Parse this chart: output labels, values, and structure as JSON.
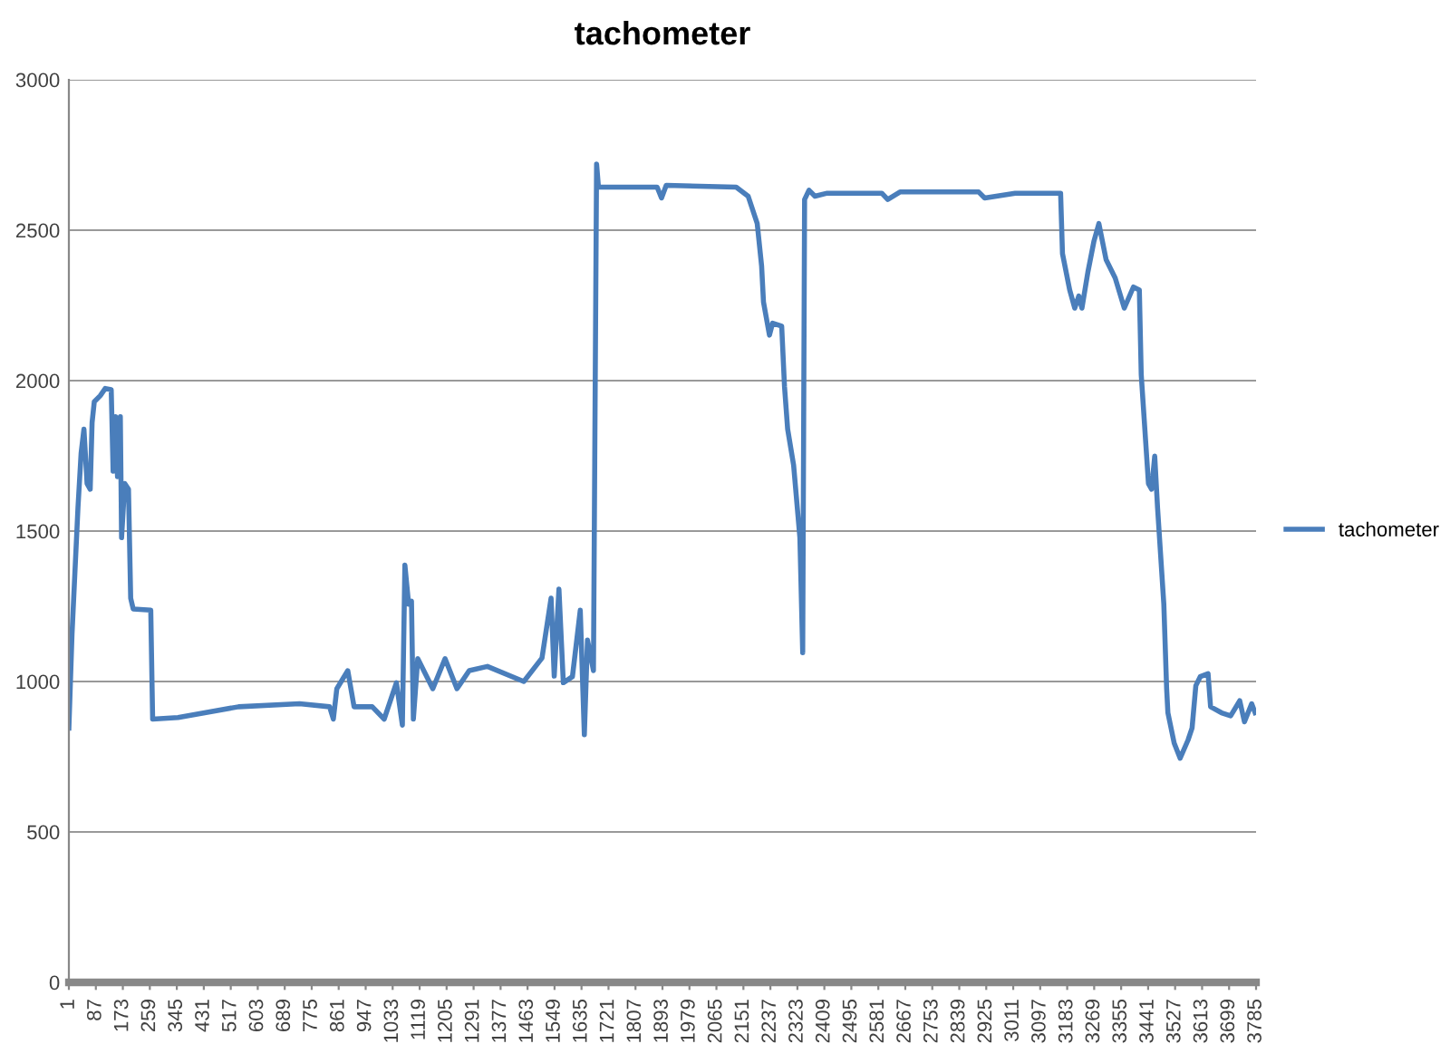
{
  "chart_data": {
    "type": "line",
    "title": "tachometer",
    "x": [
      1,
      11,
      20,
      30,
      40,
      49,
      59,
      69,
      75,
      82,
      101,
      117,
      136,
      142,
      150,
      156,
      165,
      169,
      179,
      191,
      198,
      206,
      262,
      268,
      349,
      542,
      736,
      832,
      844,
      855,
      890,
      910,
      968,
      1006,
      1045,
      1064,
      1072,
      1084,
      1093,
      1099,
      1113,
      1161,
      1200,
      1238,
      1277,
      1335,
      1451,
      1509,
      1538,
      1548,
      1563,
      1577,
      1606,
      1631,
      1644,
      1654,
      1673,
      1683,
      1689,
      1876,
      1890,
      1905,
      2128,
      2166,
      2195,
      2209,
      2215,
      2234,
      2244,
      2273,
      2282,
      2292,
      2311,
      2331,
      2340,
      2346,
      2360,
      2379,
      2418,
      2592,
      2611,
      2650,
      2901,
      2920,
      3017,
      3162,
      3168,
      3191,
      3207,
      3220,
      3230,
      3249,
      3268,
      3284,
      3307,
      3336,
      3365,
      3394,
      3413,
      3419,
      3442,
      3452,
      3462,
      3471,
      3491,
      3500,
      3504,
      3524,
      3543,
      3568,
      3581,
      3593,
      3607,
      3632,
      3640,
      3675,
      3704,
      3733,
      3748,
      3771,
      3782
    ],
    "series": [
      {
        "name": "tachometer",
        "color": "#4a7ebb",
        "values": [
          845,
          1157,
          1357,
          1578,
          1759,
          1839,
          1658,
          1639,
          1861,
          1930,
          1950,
          1974,
          1970,
          1699,
          1880,
          1681,
          1880,
          1478,
          1658,
          1639,
          1277,
          1241,
          1237,
          875,
          880,
          916,
          926,
          916,
          875,
          976,
          1036,
          916,
          916,
          875,
          996,
          855,
          1387,
          1257,
          1267,
          875,
          1076,
          976,
          1076,
          976,
          1036,
          1050,
          1000,
          1078,
          1277,
          1018,
          1307,
          996,
          1016,
          1237,
          823,
          1138,
          1036,
          2720,
          2643,
          2643,
          2607,
          2649,
          2643,
          2613,
          2522,
          2381,
          2261,
          2151,
          2191,
          2181,
          1980,
          1839,
          1719,
          1478,
          1096,
          2602,
          2633,
          2613,
          2623,
          2623,
          2602,
          2627,
          2627,
          2607,
          2623,
          2623,
          2422,
          2301,
          2241,
          2281,
          2241,
          2361,
          2462,
          2522,
          2402,
          2341,
          2241,
          2311,
          2301,
          2020,
          1658,
          1639,
          1749,
          1578,
          1257,
          976,
          896,
          795,
          745,
          805,
          845,
          986,
          1016,
          1026,
          916,
          896,
          886,
          936,
          866,
          926,
          896
        ]
      }
    ],
    "xlim": [
      1,
      3785
    ],
    "xticks": [
      1,
      87,
      173,
      259,
      345,
      431,
      517,
      603,
      689,
      775,
      861,
      947,
      1033,
      1119,
      1205,
      1291,
      1377,
      1463,
      1549,
      1635,
      1721,
      1807,
      1893,
      1979,
      2065,
      2151,
      2237,
      2323,
      2409,
      2495,
      2581,
      2667,
      2753,
      2839,
      2925,
      3011,
      3097,
      3183,
      3269,
      3355,
      3441,
      3527,
      3613,
      3699,
      3785
    ],
    "ylim": [
      0,
      3000
    ],
    "yticks": [
      0,
      500,
      1000,
      1500,
      2000,
      2500,
      3000
    ],
    "grid": "y",
    "legend": "right",
    "marker": "none",
    "line_style": "solid"
  }
}
